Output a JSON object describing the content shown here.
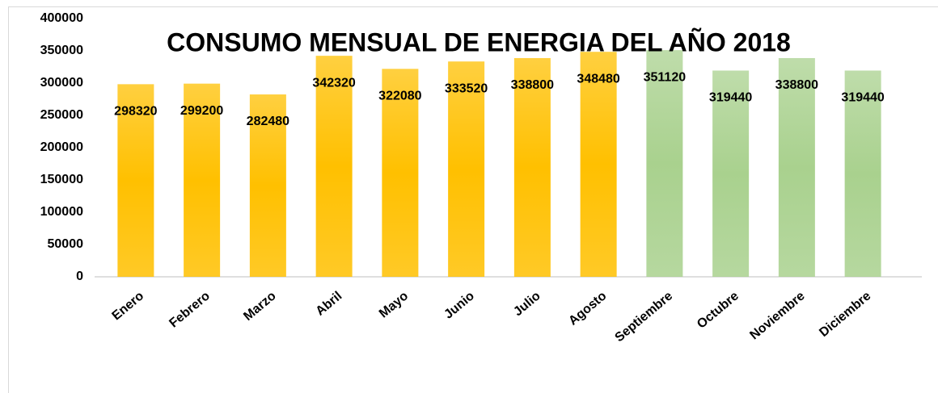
{
  "chart_data": {
    "type": "bar",
    "title": "CONSUMO MENSUAL DE ENERGIA DEL AÑO 2018",
    "categories": [
      "Enero",
      "Febrero",
      "Marzo",
      "Abril",
      "Mayo",
      "Junio",
      "Julio",
      "Agosto",
      "Septiembre",
      "Octubre",
      "Noviembre",
      "Diciembre"
    ],
    "values": [
      298320,
      299200,
      282480,
      342320,
      322080,
      333520,
      338800,
      348480,
      351120,
      319440,
      338800,
      319440
    ],
    "colors": [
      "#ffc000",
      "#ffc000",
      "#ffc000",
      "#ffc000",
      "#ffc000",
      "#ffc000",
      "#ffc000",
      "#ffc000",
      "#a9d18e",
      "#a9d18e",
      "#a9d18e",
      "#a9d18e"
    ],
    "ylim": [
      0,
      400000
    ],
    "yticks": [
      0,
      50000,
      100000,
      150000,
      200000,
      250000,
      300000,
      350000,
      400000
    ],
    "grid": false
  }
}
